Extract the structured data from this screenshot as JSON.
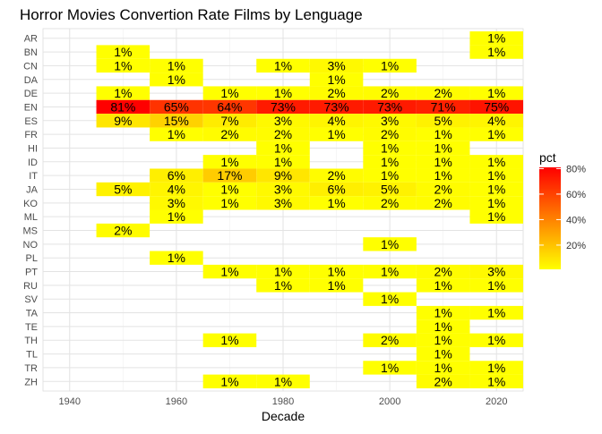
{
  "chart_data": {
    "type": "heatmap",
    "title": "Horror Movies Convertion Rate Films by Lenguage",
    "xlabel": "Decade",
    "ylabel": "",
    "legend_title": "pct",
    "legend_ticks": [
      "20%",
      "40%",
      "60%",
      "80%"
    ],
    "legend_tick_values": [
      20,
      40,
      60,
      80
    ],
    "legend_range": [
      1,
      81
    ],
    "color_low": "#ffff00",
    "color_high": "#ff0000",
    "xlim": [
      1935,
      2025
    ],
    "x_ticks": [
      1940,
      1960,
      1980,
      2000,
      2020
    ],
    "x_tick_labels": [
      "1940",
      "1960",
      "1980",
      "2000",
      "2020"
    ],
    "decades": [
      1950,
      1960,
      1970,
      1980,
      1990,
      2000,
      2010,
      2020
    ],
    "languages": [
      "AR",
      "BN",
      "CN",
      "DA",
      "DE",
      "EN",
      "ES",
      "FR",
      "HI",
      "ID",
      "IT",
      "JA",
      "KO",
      "ML",
      "MS",
      "NO",
      "PL",
      "PT",
      "RU",
      "SV",
      "TA",
      "TE",
      "TH",
      "TL",
      "TR",
      "ZH"
    ],
    "grid": true,
    "legend_position": "right",
    "cells": [
      {
        "lang": "AR",
        "decade": 2020,
        "value": 1,
        "label": "1%"
      },
      {
        "lang": "BN",
        "decade": 1950,
        "value": 1,
        "label": "1%"
      },
      {
        "lang": "BN",
        "decade": 2020,
        "value": 1,
        "label": "1%"
      },
      {
        "lang": "CN",
        "decade": 1950,
        "value": 1,
        "label": "1%"
      },
      {
        "lang": "CN",
        "decade": 1960,
        "value": 1,
        "label": "1%"
      },
      {
        "lang": "CN",
        "decade": 1980,
        "value": 1,
        "label": "1%"
      },
      {
        "lang": "CN",
        "decade": 1990,
        "value": 3,
        "label": "3%"
      },
      {
        "lang": "CN",
        "decade": 2000,
        "value": 1,
        "label": "1%"
      },
      {
        "lang": "DA",
        "decade": 1960,
        "value": 1,
        "label": "1%"
      },
      {
        "lang": "DA",
        "decade": 1990,
        "value": 1,
        "label": "1%"
      },
      {
        "lang": "DE",
        "decade": 1950,
        "value": 1,
        "label": "1%"
      },
      {
        "lang": "DE",
        "decade": 1970,
        "value": 1,
        "label": "1%"
      },
      {
        "lang": "DE",
        "decade": 1980,
        "value": 1,
        "label": "1%"
      },
      {
        "lang": "DE",
        "decade": 1990,
        "value": 2,
        "label": "2%"
      },
      {
        "lang": "DE",
        "decade": 2000,
        "value": 2,
        "label": "2%"
      },
      {
        "lang": "DE",
        "decade": 2010,
        "value": 2,
        "label": "2%"
      },
      {
        "lang": "DE",
        "decade": 2020,
        "value": 1,
        "label": "1%"
      },
      {
        "lang": "EN",
        "decade": 1950,
        "value": 81,
        "label": "81%"
      },
      {
        "lang": "EN",
        "decade": 1960,
        "value": 65,
        "label": "65%"
      },
      {
        "lang": "EN",
        "decade": 1970,
        "value": 64,
        "label": "64%"
      },
      {
        "lang": "EN",
        "decade": 1980,
        "value": 73,
        "label": "73%"
      },
      {
        "lang": "EN",
        "decade": 1990,
        "value": 73,
        "label": "73%"
      },
      {
        "lang": "EN",
        "decade": 2000,
        "value": 73,
        "label": "73%"
      },
      {
        "lang": "EN",
        "decade": 2010,
        "value": 71,
        "label": "71%"
      },
      {
        "lang": "EN",
        "decade": 2020,
        "value": 75,
        "label": "75%"
      },
      {
        "lang": "ES",
        "decade": 1950,
        "value": 9,
        "label": "9%"
      },
      {
        "lang": "ES",
        "decade": 1960,
        "value": 15,
        "label": "15%"
      },
      {
        "lang": "ES",
        "decade": 1970,
        "value": 7,
        "label": "7%"
      },
      {
        "lang": "ES",
        "decade": 1980,
        "value": 3,
        "label": "3%"
      },
      {
        "lang": "ES",
        "decade": 1990,
        "value": 4,
        "label": "4%"
      },
      {
        "lang": "ES",
        "decade": 2000,
        "value": 3,
        "label": "3%"
      },
      {
        "lang": "ES",
        "decade": 2010,
        "value": 5,
        "label": "5%"
      },
      {
        "lang": "ES",
        "decade": 2020,
        "value": 4,
        "label": "4%"
      },
      {
        "lang": "FR",
        "decade": 1960,
        "value": 1,
        "label": "1%"
      },
      {
        "lang": "FR",
        "decade": 1970,
        "value": 2,
        "label": "2%"
      },
      {
        "lang": "FR",
        "decade": 1980,
        "value": 2,
        "label": "2%"
      },
      {
        "lang": "FR",
        "decade": 1990,
        "value": 1,
        "label": "1%"
      },
      {
        "lang": "FR",
        "decade": 2000,
        "value": 2,
        "label": "2%"
      },
      {
        "lang": "FR",
        "decade": 2010,
        "value": 1,
        "label": "1%"
      },
      {
        "lang": "FR",
        "decade": 2020,
        "value": 1,
        "label": "1%"
      },
      {
        "lang": "HI",
        "decade": 1980,
        "value": 1,
        "label": "1%"
      },
      {
        "lang": "HI",
        "decade": 2000,
        "value": 1,
        "label": "1%"
      },
      {
        "lang": "HI",
        "decade": 2010,
        "value": 1,
        "label": "1%"
      },
      {
        "lang": "ID",
        "decade": 1970,
        "value": 1,
        "label": "1%"
      },
      {
        "lang": "ID",
        "decade": 1980,
        "value": 1,
        "label": "1%"
      },
      {
        "lang": "ID",
        "decade": 2000,
        "value": 1,
        "label": "1%"
      },
      {
        "lang": "ID",
        "decade": 2010,
        "value": 1,
        "label": "1%"
      },
      {
        "lang": "ID",
        "decade": 2020,
        "value": 1,
        "label": "1%"
      },
      {
        "lang": "IT",
        "decade": 1960,
        "value": 6,
        "label": "6%"
      },
      {
        "lang": "IT",
        "decade": 1970,
        "value": 17,
        "label": "17%"
      },
      {
        "lang": "IT",
        "decade": 1980,
        "value": 9,
        "label": "9%"
      },
      {
        "lang": "IT",
        "decade": 1990,
        "value": 2,
        "label": "2%"
      },
      {
        "lang": "IT",
        "decade": 2000,
        "value": 1,
        "label": "1%"
      },
      {
        "lang": "IT",
        "decade": 2010,
        "value": 1,
        "label": "1%"
      },
      {
        "lang": "IT",
        "decade": 2020,
        "value": 1,
        "label": "1%"
      },
      {
        "lang": "JA",
        "decade": 1950,
        "value": 5,
        "label": "5%"
      },
      {
        "lang": "JA",
        "decade": 1960,
        "value": 4,
        "label": "4%"
      },
      {
        "lang": "JA",
        "decade": 1970,
        "value": 1,
        "label": "1%"
      },
      {
        "lang": "JA",
        "decade": 1980,
        "value": 3,
        "label": "3%"
      },
      {
        "lang": "JA",
        "decade": 1990,
        "value": 6,
        "label": "6%"
      },
      {
        "lang": "JA",
        "decade": 2000,
        "value": 5,
        "label": "5%"
      },
      {
        "lang": "JA",
        "decade": 2010,
        "value": 2,
        "label": "2%"
      },
      {
        "lang": "JA",
        "decade": 2020,
        "value": 1,
        "label": "1%"
      },
      {
        "lang": "KO",
        "decade": 1960,
        "value": 3,
        "label": "3%"
      },
      {
        "lang": "KO",
        "decade": 1970,
        "value": 1,
        "label": "1%"
      },
      {
        "lang": "KO",
        "decade": 1980,
        "value": 3,
        "label": "3%"
      },
      {
        "lang": "KO",
        "decade": 1990,
        "value": 1,
        "label": "1%"
      },
      {
        "lang": "KO",
        "decade": 2000,
        "value": 2,
        "label": "2%"
      },
      {
        "lang": "KO",
        "decade": 2010,
        "value": 2,
        "label": "2%"
      },
      {
        "lang": "KO",
        "decade": 2020,
        "value": 1,
        "label": "1%"
      },
      {
        "lang": "ML",
        "decade": 1960,
        "value": 1,
        "label": "1%"
      },
      {
        "lang": "ML",
        "decade": 2020,
        "value": 1,
        "label": "1%"
      },
      {
        "lang": "MS",
        "decade": 1950,
        "value": 2,
        "label": "2%"
      },
      {
        "lang": "NO",
        "decade": 2000,
        "value": 1,
        "label": "1%"
      },
      {
        "lang": "PL",
        "decade": 1960,
        "value": 1,
        "label": "1%"
      },
      {
        "lang": "PT",
        "decade": 1970,
        "value": 1,
        "label": "1%"
      },
      {
        "lang": "PT",
        "decade": 1980,
        "value": 1,
        "label": "1%"
      },
      {
        "lang": "PT",
        "decade": 1990,
        "value": 1,
        "label": "1%"
      },
      {
        "lang": "PT",
        "decade": 2000,
        "value": 1,
        "label": "1%"
      },
      {
        "lang": "PT",
        "decade": 2010,
        "value": 2,
        "label": "2%"
      },
      {
        "lang": "PT",
        "decade": 2020,
        "value": 3,
        "label": "3%"
      },
      {
        "lang": "RU",
        "decade": 1980,
        "value": 1,
        "label": "1%"
      },
      {
        "lang": "RU",
        "decade": 1990,
        "value": 1,
        "label": "1%"
      },
      {
        "lang": "RU",
        "decade": 2010,
        "value": 1,
        "label": "1%"
      },
      {
        "lang": "RU",
        "decade": 2020,
        "value": 1,
        "label": "1%"
      },
      {
        "lang": "SV",
        "decade": 2000,
        "value": 1,
        "label": "1%"
      },
      {
        "lang": "TA",
        "decade": 2010,
        "value": 1,
        "label": "1%"
      },
      {
        "lang": "TA",
        "decade": 2020,
        "value": 1,
        "label": "1%"
      },
      {
        "lang": "TE",
        "decade": 2010,
        "value": 1,
        "label": "1%"
      },
      {
        "lang": "TH",
        "decade": 1970,
        "value": 1,
        "label": "1%"
      },
      {
        "lang": "TH",
        "decade": 2000,
        "value": 2,
        "label": "2%"
      },
      {
        "lang": "TH",
        "decade": 2010,
        "value": 1,
        "label": "1%"
      },
      {
        "lang": "TH",
        "decade": 2020,
        "value": 1,
        "label": "1%"
      },
      {
        "lang": "TL",
        "decade": 2010,
        "value": 1,
        "label": "1%"
      },
      {
        "lang": "TR",
        "decade": 2000,
        "value": 1,
        "label": "1%"
      },
      {
        "lang": "TR",
        "decade": 2010,
        "value": 1,
        "label": "1%"
      },
      {
        "lang": "TR",
        "decade": 2020,
        "value": 1,
        "label": "1%"
      },
      {
        "lang": "ZH",
        "decade": 1970,
        "value": 1,
        "label": "1%"
      },
      {
        "lang": "ZH",
        "decade": 1980,
        "value": 1,
        "label": "1%"
      },
      {
        "lang": "ZH",
        "decade": 2010,
        "value": 2,
        "label": "2%"
      },
      {
        "lang": "ZH",
        "decade": 2020,
        "value": 1,
        "label": "1%"
      }
    ]
  }
}
